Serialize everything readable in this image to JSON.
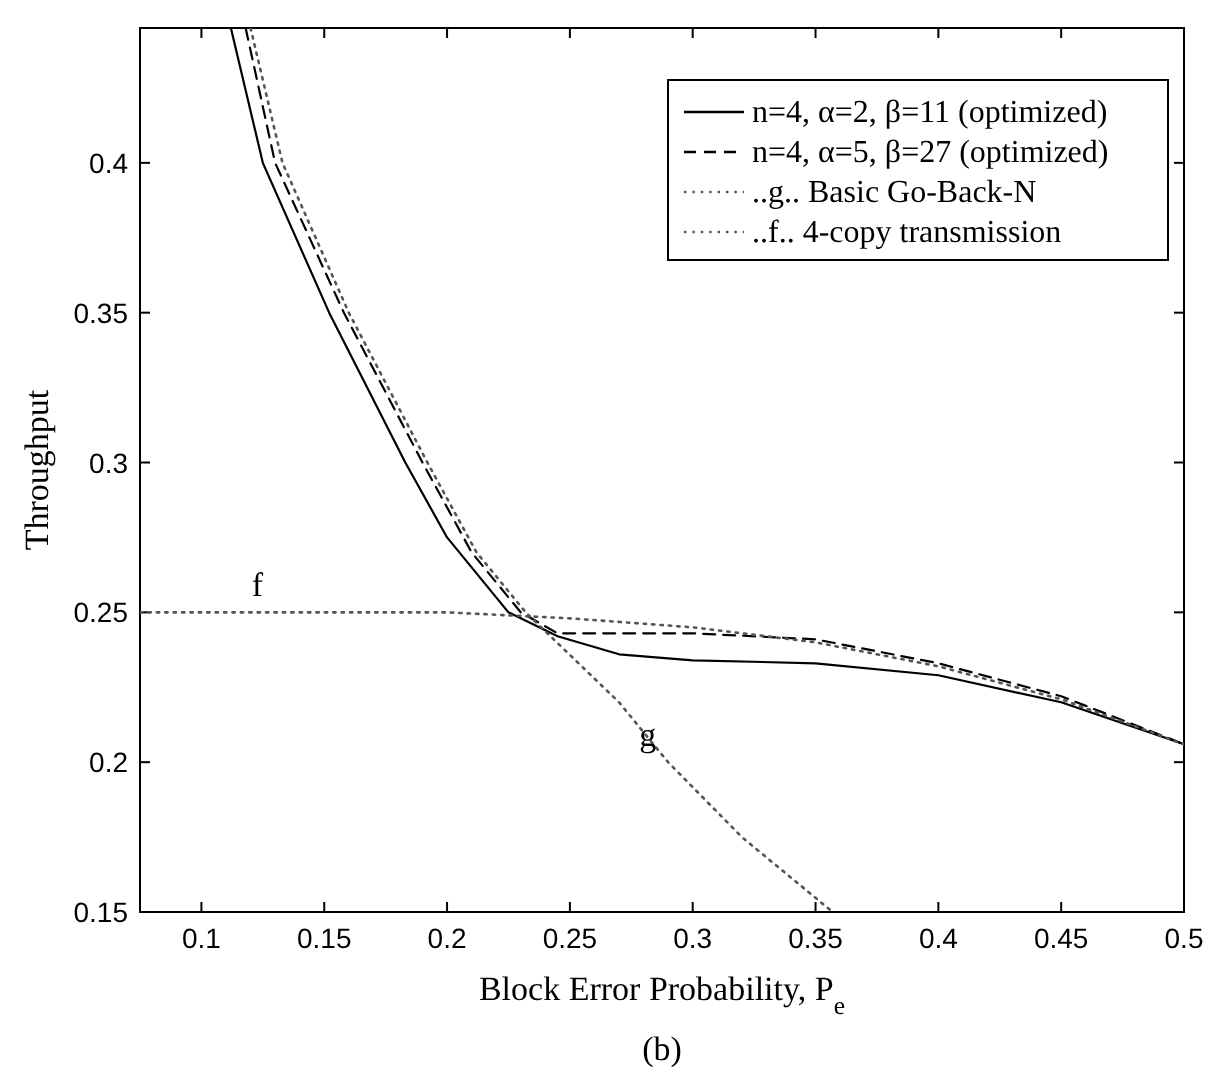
{
  "chart_data": {
    "type": "line",
    "xlabel": "Block Error Probability, P$_{e}$",
    "ylabel": "Throughput",
    "xlim": [
      0.075,
      0.5
    ],
    "ylim": [
      0.15,
      0.445
    ],
    "xticks": [
      0.1,
      0.15,
      0.2,
      0.25,
      0.3,
      0.35,
      0.4,
      0.45,
      0.5
    ],
    "yticks": [
      0.15,
      0.2,
      0.25,
      0.3,
      0.35,
      0.4
    ],
    "legend": "top right",
    "grid": false,
    "marker": "none",
    "series": [
      {
        "name": "n=4, α=2, β=11 (optimized)",
        "color": "#000000",
        "line_style": "solid",
        "x": [
          0.112,
          0.125,
          0.152,
          0.183,
          0.2,
          0.225,
          0.245,
          0.27,
          0.3,
          0.35,
          0.4,
          0.45,
          0.5
        ],
        "values": [
          0.445,
          0.4,
          0.35,
          0.3,
          0.275,
          0.25,
          0.242,
          0.236,
          0.234,
          0.233,
          0.229,
          0.22,
          0.206
        ]
      },
      {
        "name": "n=4, α=5, β=27 (optimized)",
        "color": "#000000",
        "line_style": "dashed",
        "x": [
          0.118,
          0.13,
          0.158,
          0.19,
          0.21,
          0.23,
          0.245,
          0.3,
          0.35,
          0.4,
          0.45,
          0.5
        ],
        "values": [
          0.445,
          0.4,
          0.35,
          0.3,
          0.27,
          0.25,
          0.243,
          0.243,
          0.241,
          0.233,
          0.222,
          0.206
        ]
      },
      {
        "name": "..g.. Basic Go-Back-N",
        "color": "#555555",
        "line_style": "dotted",
        "x": [
          0.12,
          0.133,
          0.16,
          0.192,
          0.212,
          0.232,
          0.27,
          0.29,
          0.32,
          0.357
        ],
        "values": [
          0.445,
          0.4,
          0.35,
          0.3,
          0.27,
          0.25,
          0.22,
          0.2,
          0.175,
          0.15
        ]
      },
      {
        "name": "..f..  4-copy transmission",
        "color": "#555555",
        "line_style": "dotted",
        "x": [
          0.075,
          0.13,
          0.2,
          0.25,
          0.3,
          0.35,
          0.4,
          0.45,
          0.5
        ],
        "values": [
          0.25,
          0.25,
          0.25,
          0.248,
          0.245,
          0.24,
          0.232,
          0.221,
          0.206
        ]
      }
    ],
    "annotations": [
      {
        "text": "f",
        "x": 0.13,
        "y": 0.25
      },
      {
        "text": "g",
        "x": 0.29,
        "y": 0.2
      },
      "(b)"
    ]
  }
}
